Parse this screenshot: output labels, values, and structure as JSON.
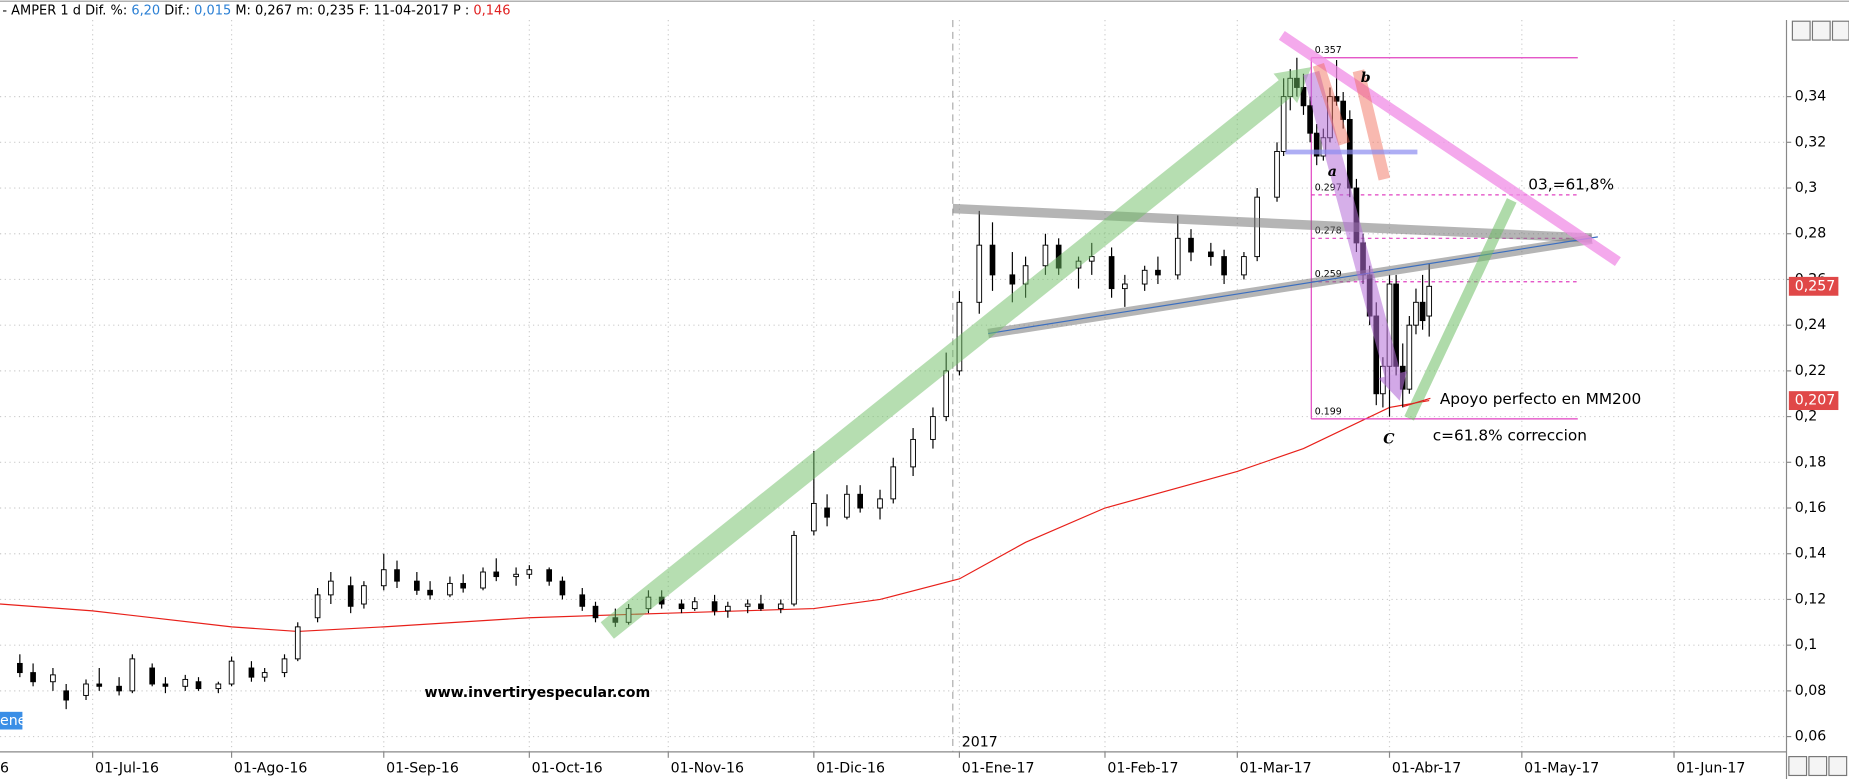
{
  "header": {
    "prefix": "-",
    "symbol": "AMPER",
    "interval": "1 d",
    "fields": [
      {
        "label": "Dif. %:",
        "value": "6,20",
        "color": "#2a7fd4"
      },
      {
        "label": "Dif.:",
        "value": "0,015",
        "color": "#2a7fd4"
      },
      {
        "label": "M:",
        "value": "0,267"
      },
      {
        "label": "m:",
        "value": "0,235"
      },
      {
        "label": "F:",
        "value": "11-04-2017"
      },
      {
        "label": "P :",
        "value": "0,146",
        "color": "#e02020"
      }
    ]
  },
  "chart_data": {
    "type": "candlestick",
    "candles": [
      {
        "date": "2016-06-16",
        "open": 0.092,
        "high": 0.096,
        "low": 0.086,
        "close": 0.088
      },
      {
        "date": "2016-06-20",
        "open": 0.088,
        "high": 0.092,
        "low": 0.082,
        "close": 0.084
      },
      {
        "date": "2016-06-23",
        "open": 0.084,
        "high": 0.09,
        "low": 0.08,
        "close": 0.087
      },
      {
        "date": "2016-06-27",
        "open": 0.08,
        "high": 0.083,
        "low": 0.072,
        "close": 0.076
      },
      {
        "date": "2016-06-30",
        "open": 0.078,
        "high": 0.085,
        "low": 0.076,
        "close": 0.083
      },
      {
        "date": "2016-07-04",
        "open": 0.083,
        "high": 0.09,
        "low": 0.08,
        "close": 0.082
      },
      {
        "date": "2016-07-07",
        "open": 0.082,
        "high": 0.086,
        "low": 0.078,
        "close": 0.08
      },
      {
        "date": "2016-07-11",
        "open": 0.08,
        "high": 0.096,
        "low": 0.079,
        "close": 0.094
      },
      {
        "date": "2016-07-14",
        "open": 0.09,
        "high": 0.092,
        "low": 0.082,
        "close": 0.083
      },
      {
        "date": "2016-07-18",
        "open": 0.083,
        "high": 0.086,
        "low": 0.079,
        "close": 0.082
      },
      {
        "date": "2016-07-21",
        "open": 0.082,
        "high": 0.087,
        "low": 0.08,
        "close": 0.085
      },
      {
        "date": "2016-07-25",
        "open": 0.084,
        "high": 0.086,
        "low": 0.08,
        "close": 0.081
      },
      {
        "date": "2016-07-28",
        "open": 0.081,
        "high": 0.084,
        "low": 0.079,
        "close": 0.083
      },
      {
        "date": "2016-08-01",
        "open": 0.083,
        "high": 0.095,
        "low": 0.082,
        "close": 0.093
      },
      {
        "date": "2016-08-04",
        "open": 0.09,
        "high": 0.093,
        "low": 0.084,
        "close": 0.086
      },
      {
        "date": "2016-08-08",
        "open": 0.086,
        "high": 0.09,
        "low": 0.084,
        "close": 0.088
      },
      {
        "date": "2016-08-11",
        "open": 0.088,
        "high": 0.096,
        "low": 0.086,
        "close": 0.094
      },
      {
        "date": "2016-08-15",
        "open": 0.094,
        "high": 0.11,
        "low": 0.093,
        "close": 0.108
      },
      {
        "date": "2016-08-18",
        "open": 0.112,
        "high": 0.125,
        "low": 0.11,
        "close": 0.122
      },
      {
        "date": "2016-08-22",
        "open": 0.122,
        "high": 0.132,
        "low": 0.118,
        "close": 0.128
      },
      {
        "date": "2016-08-25",
        "open": 0.126,
        "high": 0.13,
        "low": 0.114,
        "close": 0.117
      },
      {
        "date": "2016-08-29",
        "open": 0.118,
        "high": 0.128,
        "low": 0.116,
        "close": 0.126
      },
      {
        "date": "2016-09-01",
        "open": 0.126,
        "high": 0.14,
        "low": 0.124,
        "close": 0.133
      },
      {
        "date": "2016-09-05",
        "open": 0.133,
        "high": 0.137,
        "low": 0.125,
        "close": 0.128
      },
      {
        "date": "2016-09-08",
        "open": 0.128,
        "high": 0.132,
        "low": 0.122,
        "close": 0.124
      },
      {
        "date": "2016-09-12",
        "open": 0.124,
        "high": 0.128,
        "low": 0.12,
        "close": 0.122
      },
      {
        "date": "2016-09-15",
        "open": 0.122,
        "high": 0.13,
        "low": 0.121,
        "close": 0.127
      },
      {
        "date": "2016-09-19",
        "open": 0.127,
        "high": 0.131,
        "low": 0.123,
        "close": 0.125
      },
      {
        "date": "2016-09-22",
        "open": 0.125,
        "high": 0.134,
        "low": 0.124,
        "close": 0.132
      },
      {
        "date": "2016-09-26",
        "open": 0.132,
        "high": 0.138,
        "low": 0.128,
        "close": 0.13
      },
      {
        "date": "2016-09-29",
        "open": 0.13,
        "high": 0.134,
        "low": 0.126,
        "close": 0.131
      },
      {
        "date": "2016-10-03",
        "open": 0.131,
        "high": 0.135,
        "low": 0.129,
        "close": 0.133
      },
      {
        "date": "2016-10-06",
        "open": 0.133,
        "high": 0.134,
        "low": 0.126,
        "close": 0.128
      },
      {
        "date": "2016-10-10",
        "open": 0.128,
        "high": 0.13,
        "low": 0.12,
        "close": 0.122
      },
      {
        "date": "2016-10-13",
        "open": 0.122,
        "high": 0.125,
        "low": 0.115,
        "close": 0.117
      },
      {
        "date": "2016-10-17",
        "open": 0.117,
        "high": 0.119,
        "low": 0.11,
        "close": 0.112
      },
      {
        "date": "2016-10-20",
        "open": 0.112,
        "high": 0.116,
        "low": 0.108,
        "close": 0.11
      },
      {
        "date": "2016-10-24",
        "open": 0.11,
        "high": 0.118,
        "low": 0.109,
        "close": 0.116
      },
      {
        "date": "2016-10-27",
        "open": 0.116,
        "high": 0.124,
        "low": 0.114,
        "close": 0.121
      },
      {
        "date": "2016-10-31",
        "open": 0.121,
        "high": 0.124,
        "low": 0.116,
        "close": 0.118
      },
      {
        "date": "2016-11-03",
        "open": 0.118,
        "high": 0.12,
        "low": 0.114,
        "close": 0.116
      },
      {
        "date": "2016-11-07",
        "open": 0.116,
        "high": 0.121,
        "low": 0.115,
        "close": 0.119
      },
      {
        "date": "2016-11-10",
        "open": 0.119,
        "high": 0.122,
        "low": 0.113,
        "close": 0.115
      },
      {
        "date": "2016-11-14",
        "open": 0.115,
        "high": 0.119,
        "low": 0.112,
        "close": 0.117
      },
      {
        "date": "2016-11-17",
        "open": 0.117,
        "high": 0.12,
        "low": 0.114,
        "close": 0.118
      },
      {
        "date": "2016-11-21",
        "open": 0.118,
        "high": 0.122,
        "low": 0.115,
        "close": 0.116
      },
      {
        "date": "2016-11-24",
        "open": 0.116,
        "high": 0.12,
        "low": 0.114,
        "close": 0.118
      },
      {
        "date": "2016-11-28",
        "open": 0.118,
        "high": 0.15,
        "low": 0.117,
        "close": 0.148
      },
      {
        "date": "2016-12-01",
        "open": 0.15,
        "high": 0.185,
        "low": 0.148,
        "close": 0.162
      },
      {
        "date": "2016-12-05",
        "open": 0.16,
        "high": 0.166,
        "low": 0.152,
        "close": 0.156
      },
      {
        "date": "2016-12-08",
        "open": 0.156,
        "high": 0.17,
        "low": 0.155,
        "close": 0.166
      },
      {
        "date": "2016-12-12",
        "open": 0.166,
        "high": 0.17,
        "low": 0.158,
        "close": 0.16
      },
      {
        "date": "2016-12-15",
        "open": 0.16,
        "high": 0.168,
        "low": 0.155,
        "close": 0.164
      },
      {
        "date": "2016-12-19",
        "open": 0.164,
        "high": 0.182,
        "low": 0.162,
        "close": 0.178
      },
      {
        "date": "2016-12-22",
        "open": 0.178,
        "high": 0.195,
        "low": 0.174,
        "close": 0.19
      },
      {
        "date": "2016-12-27",
        "open": 0.19,
        "high": 0.204,
        "low": 0.186,
        "close": 0.2
      },
      {
        "date": "2016-12-29",
        "open": 0.2,
        "high": 0.228,
        "low": 0.198,
        "close": 0.22
      },
      {
        "date": "2017-01-02",
        "open": 0.22,
        "high": 0.255,
        "low": 0.218,
        "close": 0.25
      },
      {
        "date": "2017-01-05",
        "open": 0.25,
        "high": 0.29,
        "low": 0.245,
        "close": 0.275
      },
      {
        "date": "2017-01-09",
        "open": 0.275,
        "high": 0.285,
        "low": 0.255,
        "close": 0.262
      },
      {
        "date": "2017-01-12",
        "open": 0.262,
        "high": 0.272,
        "low": 0.25,
        "close": 0.258
      },
      {
        "date": "2017-01-16",
        "open": 0.258,
        "high": 0.27,
        "low": 0.252,
        "close": 0.266
      },
      {
        "date": "2017-01-19",
        "open": 0.266,
        "high": 0.28,
        "low": 0.262,
        "close": 0.275
      },
      {
        "date": "2017-01-23",
        "open": 0.275,
        "high": 0.278,
        "low": 0.262,
        "close": 0.265
      },
      {
        "date": "2017-01-26",
        "open": 0.265,
        "high": 0.27,
        "low": 0.256,
        "close": 0.268
      },
      {
        "date": "2017-01-30",
        "open": 0.268,
        "high": 0.276,
        "low": 0.262,
        "close": 0.27
      },
      {
        "date": "2017-02-02",
        "open": 0.27,
        "high": 0.274,
        "low": 0.252,
        "close": 0.256
      },
      {
        "date": "2017-02-06",
        "open": 0.256,
        "high": 0.262,
        "low": 0.248,
        "close": 0.258
      },
      {
        "date": "2017-02-09",
        "open": 0.258,
        "high": 0.266,
        "low": 0.255,
        "close": 0.264
      },
      {
        "date": "2017-02-13",
        "open": 0.264,
        "high": 0.27,
        "low": 0.258,
        "close": 0.262
      },
      {
        "date": "2017-02-16",
        "open": 0.262,
        "high": 0.288,
        "low": 0.26,
        "close": 0.278
      },
      {
        "date": "2017-02-20",
        "open": 0.278,
        "high": 0.282,
        "low": 0.268,
        "close": 0.272
      },
      {
        "date": "2017-02-23",
        "open": 0.272,
        "high": 0.276,
        "low": 0.266,
        "close": 0.27
      },
      {
        "date": "2017-02-27",
        "open": 0.27,
        "high": 0.273,
        "low": 0.258,
        "close": 0.262
      },
      {
        "date": "2017-03-02",
        "open": 0.262,
        "high": 0.272,
        "low": 0.26,
        "close": 0.27
      },
      {
        "date": "2017-03-06",
        "open": 0.27,
        "high": 0.3,
        "low": 0.268,
        "close": 0.296
      },
      {
        "date": "2017-03-09",
        "open": 0.296,
        "high": 0.32,
        "low": 0.294,
        "close": 0.316
      },
      {
        "date": "2017-03-10",
        "open": 0.316,
        "high": 0.348,
        "low": 0.314,
        "close": 0.34
      },
      {
        "date": "2017-03-13",
        "open": 0.34,
        "high": 0.352,
        "low": 0.334,
        "close": 0.348
      },
      {
        "date": "2017-03-14",
        "open": 0.348,
        "high": 0.357,
        "low": 0.34,
        "close": 0.344
      },
      {
        "date": "2017-03-15",
        "open": 0.344,
        "high": 0.35,
        "low": 0.332,
        "close": 0.336
      },
      {
        "date": "2017-03-16",
        "open": 0.336,
        "high": 0.34,
        "low": 0.32,
        "close": 0.324
      },
      {
        "date": "2017-03-17",
        "open": 0.324,
        "high": 0.328,
        "low": 0.31,
        "close": 0.314
      },
      {
        "date": "2017-03-20",
        "open": 0.314,
        "high": 0.326,
        "low": 0.312,
        "close": 0.322
      },
      {
        "date": "2017-03-21",
        "open": 0.322,
        "high": 0.344,
        "low": 0.32,
        "close": 0.34
      },
      {
        "date": "2017-03-22",
        "open": 0.34,
        "high": 0.356,
        "low": 0.336,
        "close": 0.338
      },
      {
        "date": "2017-03-23",
        "open": 0.338,
        "high": 0.342,
        "low": 0.326,
        "close": 0.33
      },
      {
        "date": "2017-03-24",
        "open": 0.33,
        "high": 0.334,
        "low": 0.296,
        "close": 0.3
      },
      {
        "date": "2017-03-27",
        "open": 0.3,
        "high": 0.304,
        "low": 0.272,
        "close": 0.276
      },
      {
        "date": "2017-03-28",
        "open": 0.276,
        "high": 0.28,
        "low": 0.258,
        "close": 0.262
      },
      {
        "date": "2017-03-29",
        "open": 0.262,
        "high": 0.266,
        "low": 0.24,
        "close": 0.244
      },
      {
        "date": "2017-03-30",
        "open": 0.244,
        "high": 0.25,
        "low": 0.205,
        "close": 0.21
      },
      {
        "date": "2017-03-31",
        "open": 0.21,
        "high": 0.226,
        "low": 0.204,
        "close": 0.222
      },
      {
        "date": "2017-04-03",
        "open": 0.222,
        "high": 0.262,
        "low": 0.2,
        "close": 0.258
      },
      {
        "date": "2017-04-04",
        "open": 0.258,
        "high": 0.262,
        "low": 0.218,
        "close": 0.222
      },
      {
        "date": "2017-04-05",
        "open": 0.222,
        "high": 0.232,
        "low": 0.204,
        "close": 0.212
      },
      {
        "date": "2017-04-06",
        "open": 0.212,
        "high": 0.244,
        "low": 0.21,
        "close": 0.24
      },
      {
        "date": "2017-04-07",
        "open": 0.24,
        "high": 0.256,
        "low": 0.236,
        "close": 0.25
      },
      {
        "date": "2017-04-10",
        "open": 0.25,
        "high": 0.262,
        "low": 0.238,
        "close": 0.242
      },
      {
        "date": "2017-04-11",
        "open": 0.244,
        "high": 0.267,
        "low": 0.235,
        "close": 0.257
      }
    ],
    "up_color": "#ffffff",
    "down_color": "#000000",
    "xlim": [
      "2016-06-13",
      "2017-06-26"
    ],
    "xticks": [
      {
        "value": "2016-07-01",
        "label": "01-Jul-16"
      },
      {
        "value": "2016-08-01",
        "label": "01-Ago-16"
      },
      {
        "value": "2016-09-01",
        "label": "01-Sep-16"
      },
      {
        "value": "2016-10-03",
        "label": "01-Oct-16"
      },
      {
        "value": "2016-11-01",
        "label": "01-Nov-16"
      },
      {
        "value": "2016-12-01",
        "label": "01-Dic-16"
      },
      {
        "value": "2017-01-02",
        "label": "01-Ene-17"
      },
      {
        "value": "2017-02-01",
        "label": "01-Feb-17"
      },
      {
        "value": "2017-03-01",
        "label": "01-Mar-17"
      },
      {
        "value": "2017-04-03",
        "label": "01-Abr-17"
      },
      {
        "value": "2017-05-01",
        "label": "01-May-17"
      },
      {
        "value": "2017-06-01",
        "label": "01-Jun-17"
      }
    ],
    "year_marker": {
      "value": "2017-01-02",
      "label": "2017"
    },
    "ylim": [
      0.0533,
      0.3735
    ],
    "yticks": [
      {
        "value": 0.06,
        "label": "0,06"
      },
      {
        "value": 0.08,
        "label": "0,08"
      },
      {
        "value": 0.1,
        "label": "0,1"
      },
      {
        "value": 0.12,
        "label": "0,12"
      },
      {
        "value": 0.14,
        "label": "0,14"
      },
      {
        "value": 0.16,
        "label": "0,16"
      },
      {
        "value": 0.18,
        "label": "0,18"
      },
      {
        "value": 0.2,
        "label": "0,2"
      },
      {
        "value": 0.22,
        "label": "0,22"
      },
      {
        "value": 0.24,
        "label": "0,24"
      },
      {
        "value": 0.26,
        "label": "0,26"
      },
      {
        "value": 0.28,
        "label": "0,28"
      },
      {
        "value": 0.3,
        "label": "0,3"
      },
      {
        "value": 0.32,
        "label": "0,32"
      },
      {
        "value": 0.34,
        "label": "0,34"
      }
    ],
    "grid": true,
    "moving_average": {
      "color": "#e8201a",
      "x": [
        "2016-06-13",
        "2016-07-01",
        "2016-08-01",
        "2016-08-15",
        "2016-09-01",
        "2016-10-03",
        "2016-11-01",
        "2016-12-01",
        "2016-12-15",
        "2017-01-02",
        "2017-01-16",
        "2017-02-01",
        "2017-03-01",
        "2017-03-15",
        "2017-04-03",
        "2017-04-11"
      ],
      "values": [
        0.118,
        0.115,
        0.108,
        0.106,
        0.108,
        0.112,
        0.114,
        0.116,
        0.12,
        0.129,
        0.145,
        0.16,
        0.176,
        0.186,
        0.204,
        0.207
      ]
    },
    "fib_levels": [
      0.357,
      0.297,
      0.278,
      0.259,
      0.199
    ],
    "fib_color": "#e040c0",
    "price_tags": [
      {
        "value": 0.257,
        "label": "0,257"
      },
      {
        "value": 0.207,
        "label": "0,207"
      }
    ],
    "price_tag_color": "#e04848",
    "annotations": {
      "retracement": "03,=61,8%",
      "support": "Apoyo perfecto en MM200",
      "correction": "c=61.8% correccion",
      "wave_a": "a",
      "wave_b": "b",
      "wave_c": "C",
      "website": "www.invertiryespecular.com"
    },
    "left_edge": {
      "axis_fragment": "6",
      "label_fragment": "enes"
    }
  }
}
